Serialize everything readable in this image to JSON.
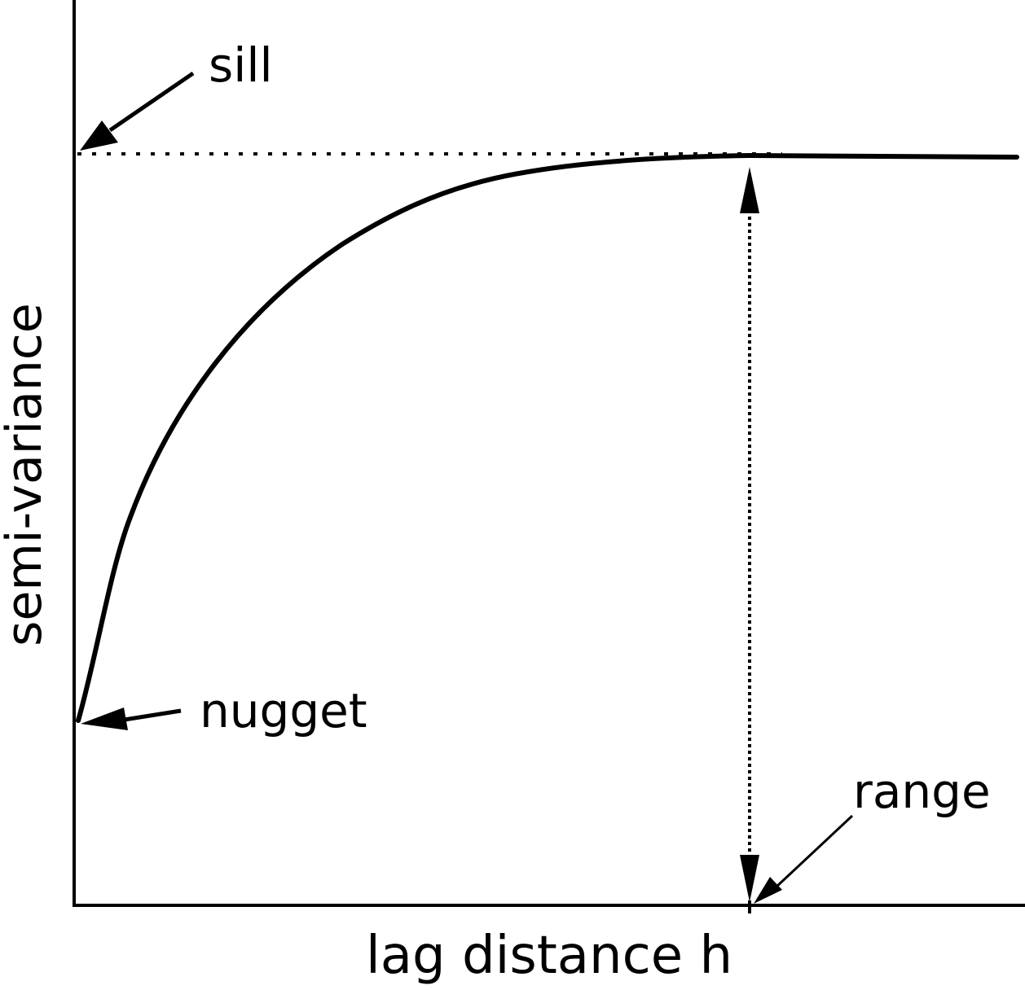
{
  "diagram": {
    "labels": {
      "sill": "sill",
      "nugget": "nugget",
      "range": "range",
      "xlabel": "lag distance h",
      "ylabel": "semi-variance"
    },
    "colors": {
      "ink": "#000000",
      "background": "#ffffff"
    }
  }
}
